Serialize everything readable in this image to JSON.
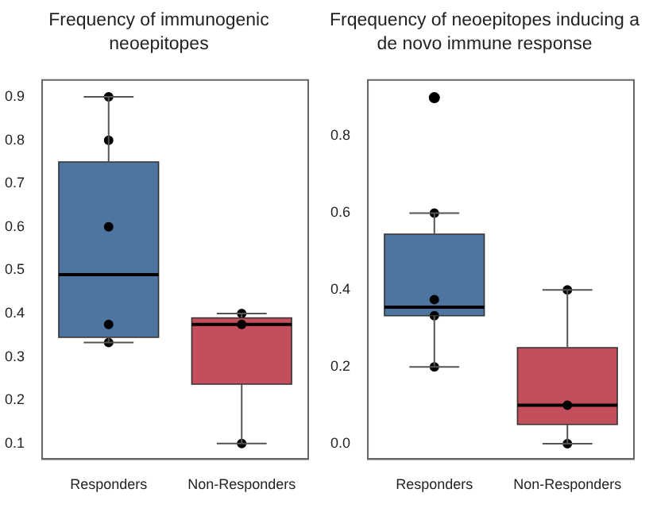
{
  "chart_data": [
    {
      "type": "box",
      "title": "Frequency of immunogenic neoepitopes",
      "categories": [
        "Responders",
        "Non-Responders"
      ],
      "colors": [
        "#4e74a0",
        "#c44e5c"
      ],
      "boxes": [
        {
          "low": 0.333,
          "q1": 0.345,
          "median": 0.49,
          "q3": 0.75,
          "high": 0.9
        },
        {
          "low": 0.1,
          "q1": 0.237,
          "median": 0.375,
          "q3": 0.39,
          "high": 0.4
        }
      ],
      "series": [
        {
          "type": "scatter",
          "color": "#000000",
          "x": [
            "Responders",
            "Responders",
            "Responders",
            "Responders",
            "Responders",
            "Non-Responders",
            "Non-Responders",
            "Non-Responders"
          ],
          "values": [
            0.9,
            0.8,
            0.6,
            0.375,
            0.333,
            0.4,
            0.375,
            0.1
          ]
        }
      ],
      "ylim": [
        0.064,
        0.939
      ],
      "yticks": [
        0.1,
        0.2,
        0.3,
        0.4,
        0.5,
        0.6,
        0.7,
        0.8,
        0.9
      ],
      "grid": false,
      "legend": false,
      "marker": "circle"
    },
    {
      "type": "box",
      "title": "Frqequency of neoepitopes inducing a de novo immune response",
      "categories": [
        "Responders",
        "Non-Responders"
      ],
      "colors": [
        "#4e74a0",
        "#c44e5c"
      ],
      "boxes": [
        {
          "low": 0.2,
          "q1": 0.333,
          "median": 0.355,
          "q3": 0.545,
          "high": 0.6,
          "outliers": [
            0.9
          ]
        },
        {
          "low": 0,
          "q1": 0.05,
          "median": 0.1,
          "q3": 0.25,
          "high": 0.4
        }
      ],
      "series": [
        {
          "type": "scatter",
          "color": "#000000",
          "x": [
            "Responders",
            "Responders",
            "Responders",
            "Responders",
            "Non-Responders",
            "Non-Responders",
            "Non-Responders"
          ],
          "values": [
            0.6,
            0.375,
            0.333,
            0.2,
            0.4,
            0.1,
            0
          ]
        }
      ],
      "ylim": [
        -0.04,
        0.946
      ],
      "yticks": [
        {
          "value": 0,
          "label": "0.0"
        },
        0.2,
        0.4,
        0.6,
        0.8
      ],
      "grid": false,
      "legend": false,
      "marker": "circle"
    }
  ]
}
